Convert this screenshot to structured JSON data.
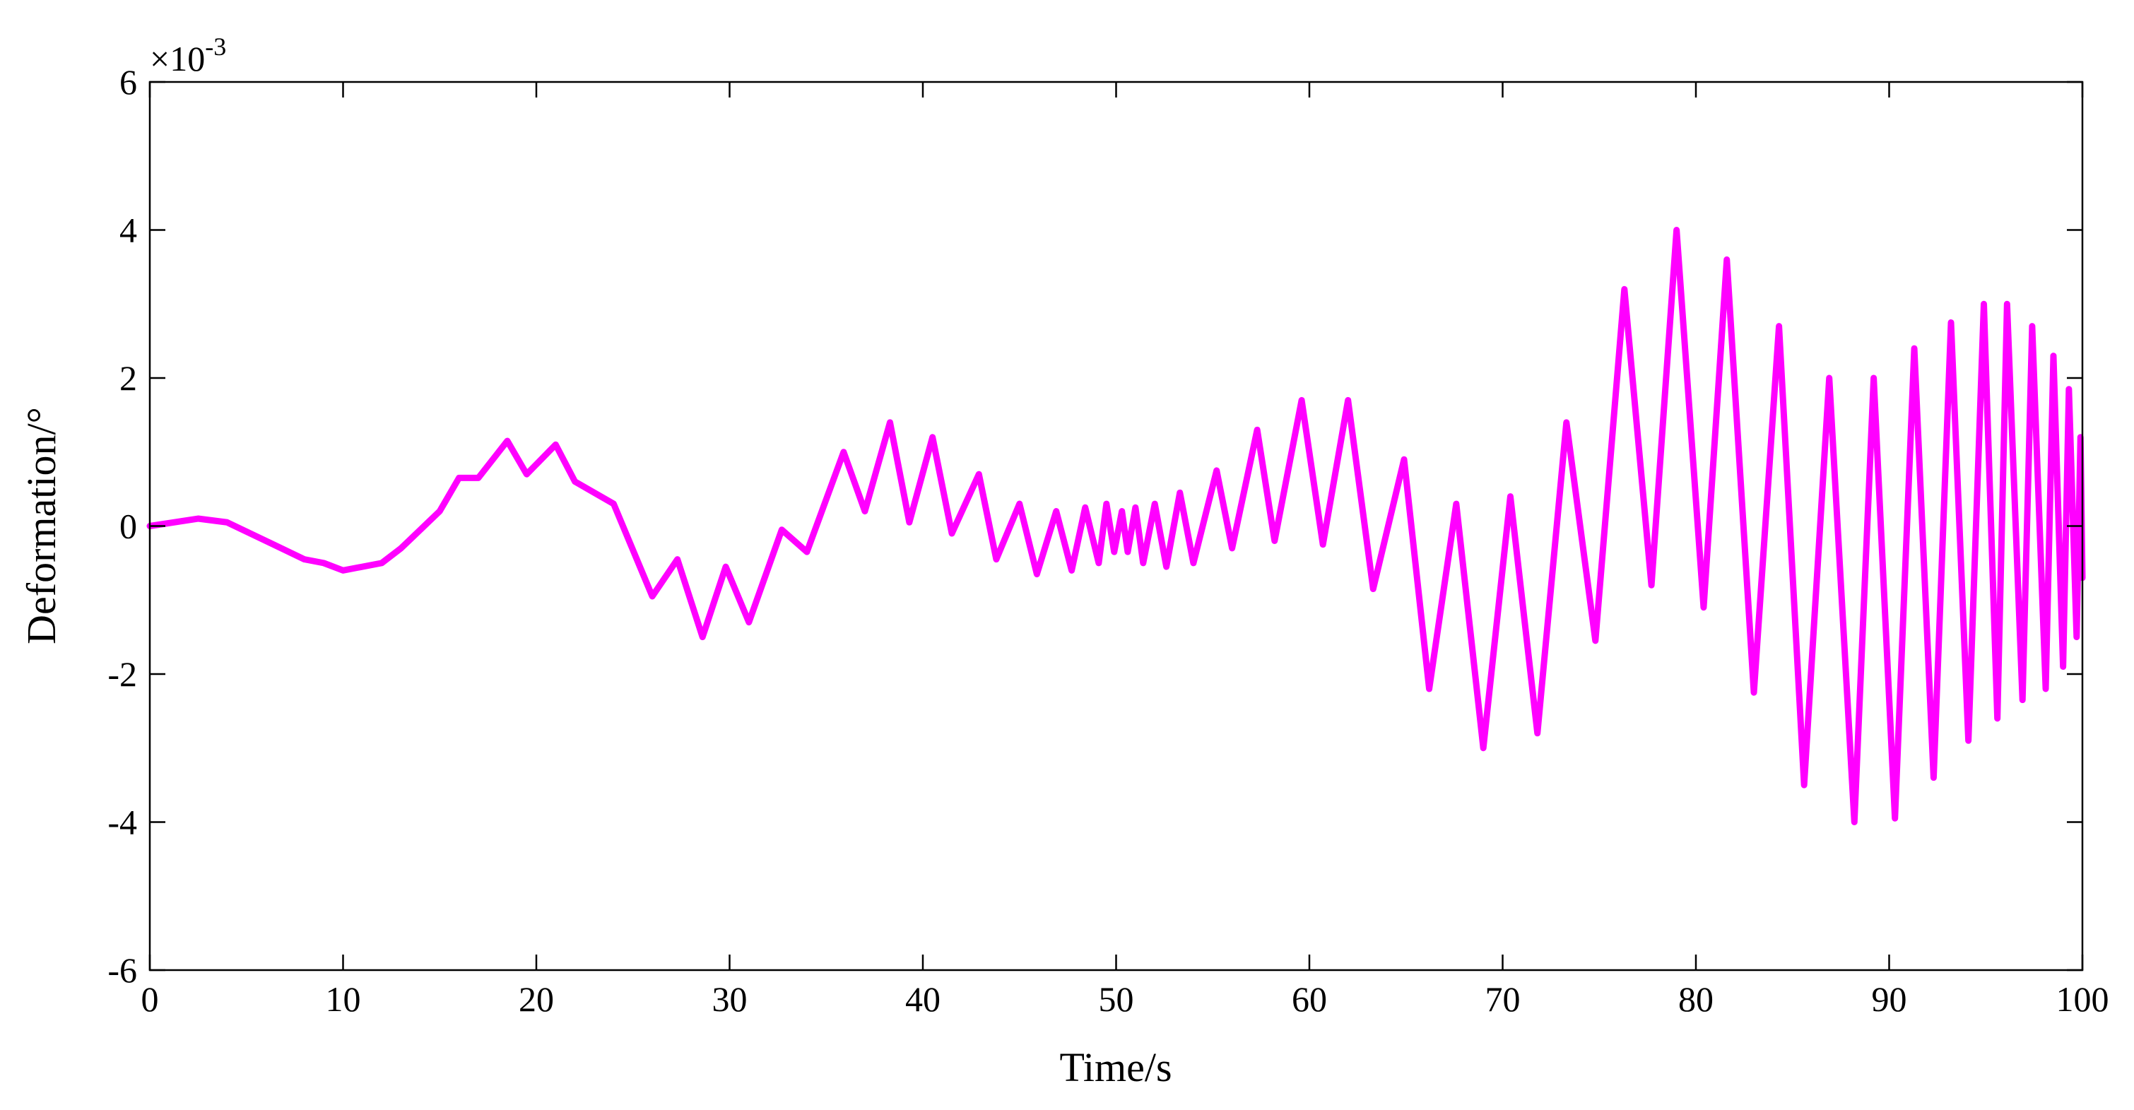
{
  "chart_data": {
    "type": "line",
    "xlabel": "Time/s",
    "ylabel": "Deformation/°",
    "y_multiplier": {
      "base": "×10",
      "exponent": "-3"
    },
    "xlim": [
      0,
      100
    ],
    "xticks": [
      0,
      10,
      20,
      30,
      40,
      50,
      60,
      70,
      80,
      90,
      100
    ],
    "ylim": [
      -6,
      6
    ],
    "yticks": [
      -6,
      -4,
      -2,
      0,
      2,
      4,
      6
    ],
    "grid": false,
    "series": [
      {
        "color": "#ff00ff",
        "x": [
          0,
          2.5,
          4,
          6,
          8,
          9,
          10,
          12,
          13,
          15,
          16,
          17,
          18.5,
          19.5,
          21,
          22,
          24,
          26,
          27.3,
          28.6,
          29.8,
          31,
          32.7,
          34,
          35.9,
          37,
          38.3,
          39.3,
          40.5,
          41.5,
          42.9,
          43.8,
          45,
          45.9,
          46.9,
          47.7,
          48.4,
          49.1,
          49.5,
          49.9,
          50.3,
          50.6,
          51,
          51.4,
          52,
          52.6,
          53.3,
          54,
          55.2,
          56,
          57.3,
          58.2,
          59.6,
          60.7,
          62,
          63.3,
          64.9,
          66.2,
          67.6,
          69,
          70.4,
          71.8,
          73.3,
          74.8,
          76.3,
          77.7,
          79,
          80.4,
          81.6,
          83,
          84.3,
          85.6,
          86.9,
          88.2,
          89.2,
          90.3,
          91.3,
          92.3,
          93.2,
          94.1,
          94.9,
          95.6,
          96.1,
          96.9,
          97.4,
          98.1,
          98.5,
          99.0,
          99.3,
          99.7,
          99.9,
          100
        ],
        "values": [
          0,
          0.1,
          0.05,
          -0.2,
          -0.45,
          -0.5,
          -0.6,
          -0.5,
          -0.3,
          0.2,
          0.65,
          0.65,
          1.15,
          0.7,
          1.1,
          0.6,
          0.3,
          -0.95,
          -0.45,
          -1.5,
          -0.55,
          -1.3,
          -0.05,
          -0.35,
          1.0,
          0.2,
          1.4,
          0.05,
          1.2,
          -0.1,
          0.7,
          -0.45,
          0.3,
          -0.65,
          0.2,
          -0.6,
          0.25,
          -0.5,
          0.3,
          -0.35,
          0.2,
          -0.35,
          0.25,
          -0.5,
          0.3,
          -0.55,
          0.45,
          -0.5,
          0.75,
          -0.3,
          1.3,
          -0.2,
          1.7,
          -0.25,
          1.7,
          -0.85,
          0.9,
          -2.2,
          0.3,
          -3.0,
          0.4,
          -2.8,
          1.4,
          -1.55,
          3.2,
          -0.8,
          4.0,
          -1.1,
          3.6,
          -2.25,
          2.7,
          -3.5,
          2.0,
          -4.0,
          2.0,
          -3.95,
          2.4,
          -3.4,
          2.75,
          -2.9,
          3.0,
          -2.6,
          3.0,
          -2.35,
          2.7,
          -2.2,
          2.3,
          -1.9,
          1.85,
          -1.5,
          1.2,
          -0.7
        ]
      }
    ]
  }
}
